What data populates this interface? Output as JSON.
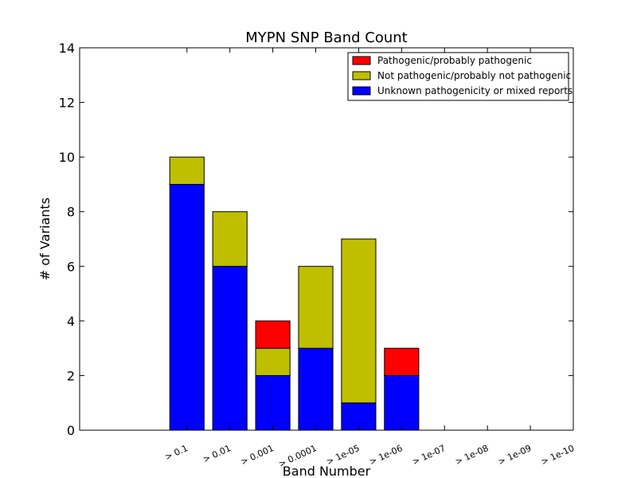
{
  "chart_data": {
    "type": "bar",
    "stacked": true,
    "title": "MYPN SNP Band Count",
    "xlabel": "Band Number",
    "ylabel": "# of Variants",
    "ylim": [
      0,
      14
    ],
    "yticks": [
      "0",
      "2",
      "4",
      "6",
      "8",
      "10",
      "12",
      "14"
    ],
    "categories": [
      "> 0.1",
      "> 0.01",
      "> 0.001",
      "> 0.0001",
      "> 1e-05",
      "> 1e-06",
      "> 1e-07",
      "> 1e-08",
      "> 1e-09",
      "> 1e-10"
    ],
    "series": [
      {
        "name": "Unknown pathogenicity or mixed reports",
        "color": "#0000ff",
        "values": [
          9,
          6,
          2,
          3,
          1,
          2,
          0,
          0,
          0,
          0
        ]
      },
      {
        "name": "Not pathogenic/probably not pathogenic",
        "color": "#bfbf00",
        "values": [
          1,
          2,
          1,
          3,
          6,
          0,
          0,
          0,
          0,
          0
        ]
      },
      {
        "name": "Pathogenic/probably pathogenic",
        "color": "#ff0000",
        "values": [
          0,
          0,
          1,
          0,
          0,
          1,
          0,
          0,
          0,
          0
        ]
      }
    ],
    "legend": {
      "placement": "top-right",
      "order": [
        "Pathogenic/probably pathogenic",
        "Not pathogenic/probably not pathogenic",
        "Unknown pathogenicity or mixed reports"
      ]
    },
    "grid": false
  }
}
